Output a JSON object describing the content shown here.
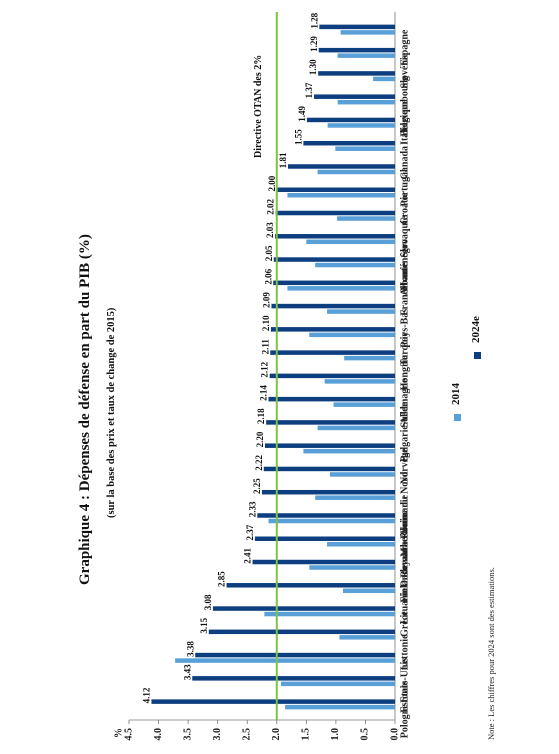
{
  "chart_data": {
    "type": "bar",
    "title": "Graphique 4 : Dépenses de défense en part du PIB (%)",
    "subtitle": "(sur la base des prix et taux de change de 2015)",
    "ylabel": "%",
    "ylim": [
      0,
      4.5
    ],
    "yticks": [
      "0.0",
      "0.5",
      "1.0",
      "1.5",
      "2.0",
      "2.5",
      "3.0",
      "3.5",
      "4.0",
      "4.5"
    ],
    "categories": [
      "Pologne",
      "Estonie",
      "Etats-Unis",
      "Lettonie",
      "Grèce",
      "Lituanie",
      "Finlande",
      "Danemark",
      "Royaume-Uni",
      "Roumanie",
      "Macédoine du Nord",
      "Norvège",
      "Bulgarie",
      "Suède",
      "Allemagne",
      "Hongrie",
      "Turquie",
      "Pays-Bas",
      "France",
      "Albanie",
      "Monténégro",
      "Slovaquie",
      "Croatie",
      "Portugal",
      "Canada",
      "Italie",
      "Belgique",
      "Luxembourg",
      "Slovénie",
      "Espagne"
    ],
    "series": [
      {
        "name": "2014",
        "color": "#5aa0d8",
        "values": [
          1.86,
          1.93,
          3.72,
          0.94,
          2.21,
          0.88,
          1.45,
          1.15,
          2.14,
          1.35,
          1.1,
          1.55,
          1.31,
          1.04,
          1.19,
          0.86,
          1.45,
          1.15,
          1.82,
          1.35,
          1.5,
          0.98,
          1.82,
          1.31,
          1.01,
          1.14,
          0.97,
          0.37,
          0.97,
          0.92
        ]
      },
      {
        "name": "2024e",
        "color": "#0d3f80",
        "values": [
          4.12,
          3.43,
          3.38,
          3.15,
          3.08,
          2.85,
          2.41,
          2.37,
          2.33,
          2.25,
          2.22,
          2.2,
          2.18,
          2.14,
          2.12,
          2.11,
          2.1,
          2.09,
          2.06,
          2.05,
          2.03,
          2.02,
          2.0,
          1.81,
          1.55,
          1.49,
          1.37,
          1.3,
          1.29,
          1.28
        ]
      }
    ],
    "data_labels": [
      "4.12",
      "3.43",
      "3.38",
      "3.15",
      "3.08",
      "2.85",
      "2.41",
      "2.37",
      "2.33",
      "2.25",
      "2.22",
      "2.20",
      "2.18",
      "2.14",
      "2.12",
      "2.11",
      "2.10",
      "2.09",
      "2.06",
      "2.05",
      "2.03",
      "2.02",
      "2.00",
      "1.81",
      "1.55",
      "1.49",
      "1.37",
      "1.30",
      "1.29",
      "1.28"
    ],
    "reference_line": {
      "value": 2.0,
      "label": "Directive OTAN des 2%",
      "color": "#7dc242"
    },
    "legend": {
      "placement": "bottom",
      "entries": [
        "2014",
        "2024e"
      ]
    },
    "grid": false
  },
  "note": "Note : Les chiffres pour 2024 sont des estimations."
}
